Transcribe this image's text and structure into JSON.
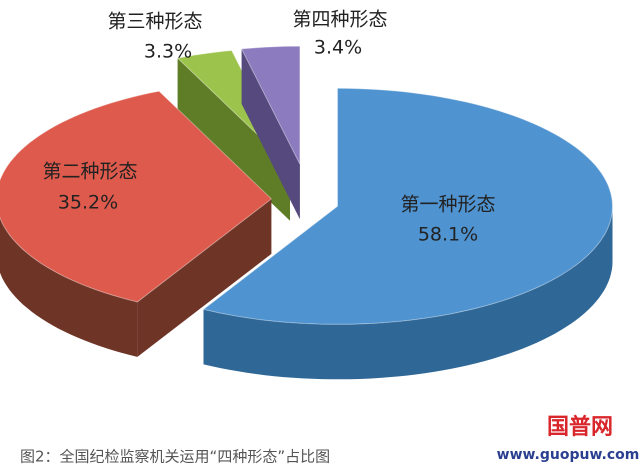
{
  "chart_data": {
    "type": "pie3d",
    "categories": [
      "第一种形态",
      "第二种形态",
      "第三种形态",
      "第四种形态"
    ],
    "values": [
      58.1,
      35.2,
      3.3,
      3.4
    ],
    "value_labels": [
      "58.1%",
      "35.2%",
      "3.3%",
      "3.4%"
    ],
    "colors": [
      "#4f93d0",
      "#de5a4c",
      "#9cc44c",
      "#8c7bbf"
    ],
    "side_colors": [
      "#2f6797",
      "#6e3426",
      "#5f7d27",
      "#56497d"
    ],
    "caption": "图2：全国纪检监察机关运用“四种形态”占比图"
  },
  "watermark": {
    "name": "国普网",
    "url": "www.guopuw.com"
  }
}
